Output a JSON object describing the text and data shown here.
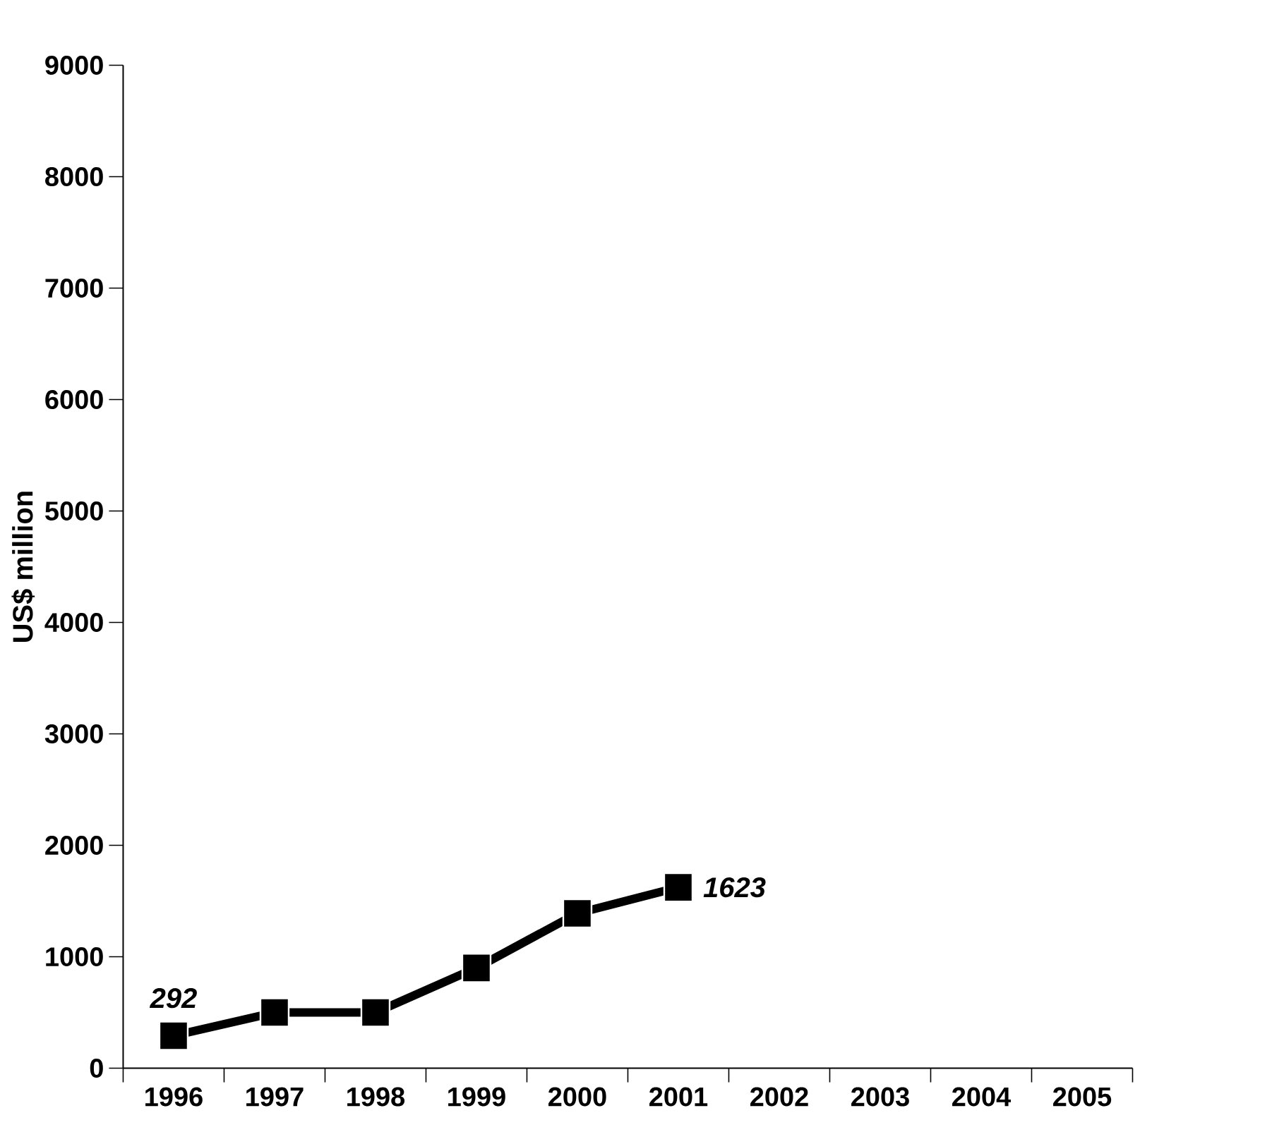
{
  "chart_data": {
    "type": "line",
    "ylabel": "US$ million",
    "categories": [
      "1996",
      "1997",
      "1998",
      "1999",
      "2000",
      "2001",
      "2002",
      "2003",
      "2004",
      "2005"
    ],
    "values": [
      292,
      500,
      500,
      900,
      1390,
      1623,
      null,
      null,
      null,
      null
    ],
    "value_labels": [
      "292",
      null,
      null,
      null,
      null,
      "1623",
      null,
      null,
      null,
      null
    ],
    "color": "#000000",
    "marker": "square",
    "line_style": "solid",
    "ylim": [
      0,
      9000
    ],
    "yticks": [
      0,
      1000,
      2000,
      3000,
      4000,
      5000,
      6000,
      7000,
      8000,
      9000
    ]
  }
}
